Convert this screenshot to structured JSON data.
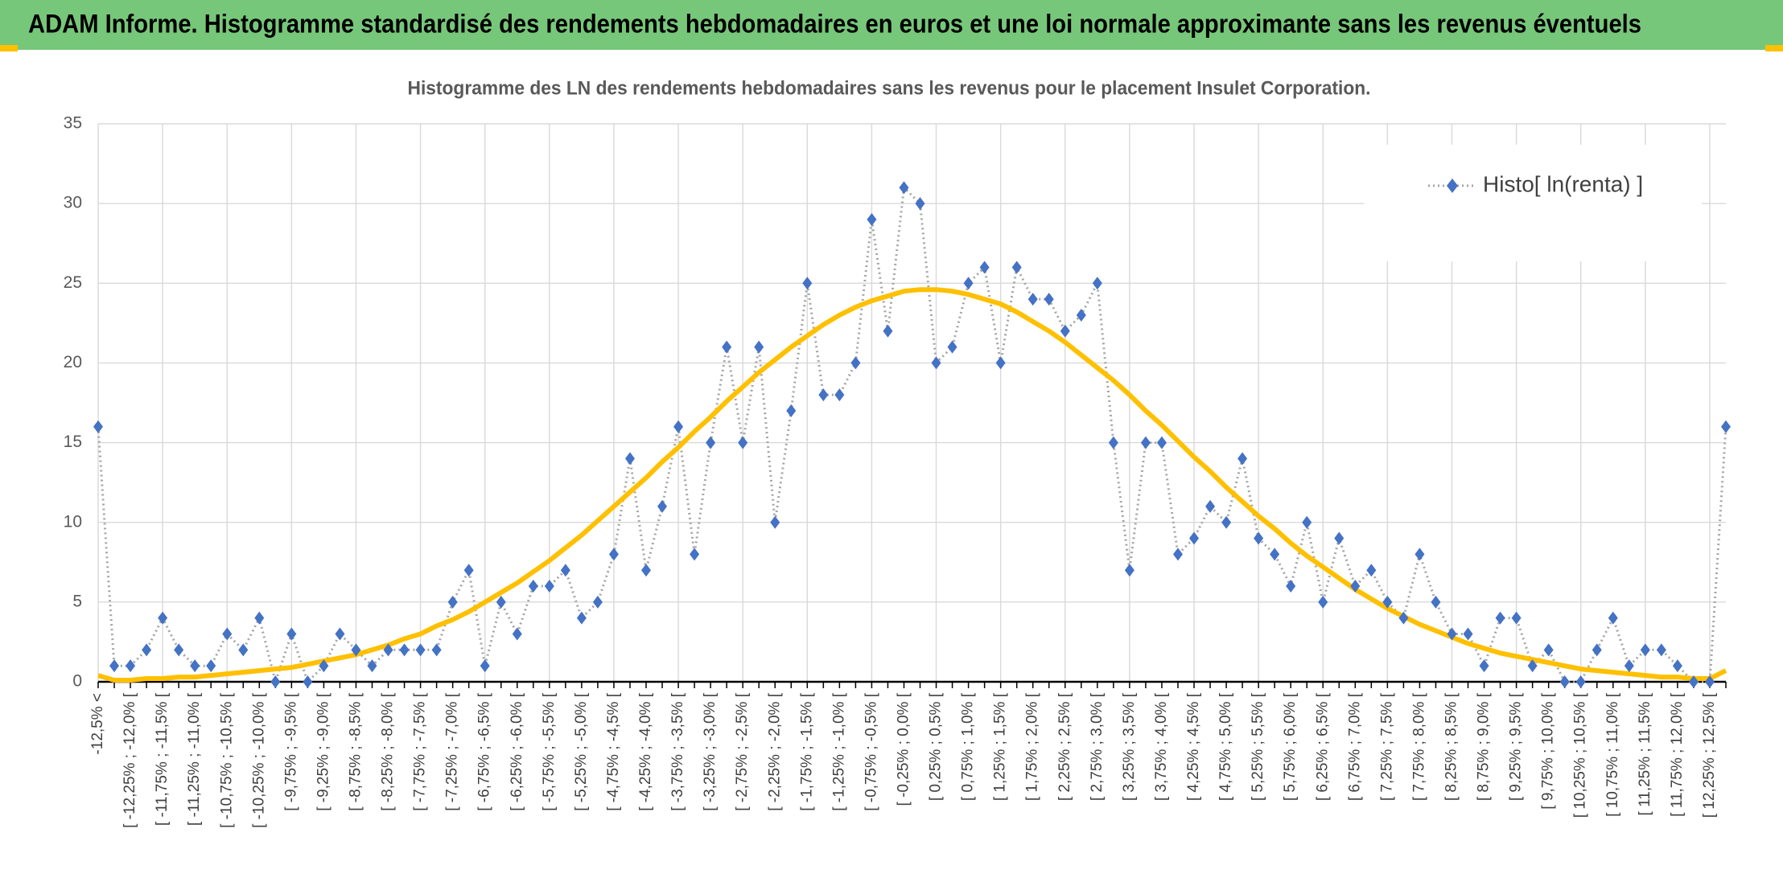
{
  "header": {
    "title": "ADAM Informe. Histogramme standardisé des rendements hebdomadaires en euros et une loi normale approximante sans les revenus éventuels"
  },
  "chart_data": {
    "type": "line",
    "title": "Histogramme des LN des rendements hebdomadaires sans les revenus pour le placement Insulet Corporation.",
    "categories": [
      "-12,5% <",
      null,
      "[ -12,25% ; -12,0% [",
      null,
      "[ -11,75% ; -11,5% [",
      null,
      "[ -11,25% ; -11,0% [",
      null,
      "[ -10,75% ; -10,5% [",
      null,
      "[ -10,25% ; -10,0% [",
      null,
      "[ -9,75% ; -9,5% [",
      null,
      "[ -9,25% ; -9,0% [",
      null,
      "[ -8,75% ; -8,5% [",
      null,
      "[ -8,25% ; -8,0% [",
      null,
      "[ -7,75% ; -7,5% [",
      null,
      "[ -7,25% ; -7,0% [",
      null,
      "[ -6,75% ; -6,5% [",
      null,
      "[ -6,25% ; -6,0% [",
      null,
      "[ -5,75% ; -5,5% [",
      null,
      "[ -5,25% ; -5,0% [",
      null,
      "[ -4,75% ; -4,5% [",
      null,
      "[ -4,25% ; -4,0% [",
      null,
      "[ -3,75% ; -3,5% [",
      null,
      "[ -3,25% ; -3,0% [",
      null,
      "[ -2,75% ; -2,5% [",
      null,
      "[ -2,25% ; -2,0% [",
      null,
      "[ -1,75% ; -1,5% [",
      null,
      "[ -1,25% ; -1,0% [",
      null,
      "[ -0,75% ; -0,5% [",
      null,
      "[ -0,25% ; 0,0% [",
      null,
      "[ 0,25% ; 0,5% [",
      null,
      "[ 0,75% ; 1,0% [",
      null,
      "[ 1,25% ; 1,5% [",
      null,
      "[ 1,75% ; 2,0% [",
      null,
      "[ 2,25% ; 2,5% [",
      null,
      "[ 2,75% ; 3,0% [",
      null,
      "[ 3,25% ; 3,5% [",
      null,
      "[ 3,75% ; 4,0% [",
      null,
      "[ 4,25% ; 4,5% [",
      null,
      "[ 4,75% ; 5,0% [",
      null,
      "[ 5,25% ; 5,5% [",
      null,
      "[ 5,75% ; 6,0% [",
      null,
      "[ 6,25% ; 6,5% [",
      null,
      "[ 6,75% ; 7,0% [",
      null,
      "[ 7,25% ; 7,5% [",
      null,
      "[ 7,75% ; 8,0% [",
      null,
      "[ 8,25% ; 8,5% [",
      null,
      "[ 8,75% ; 9,0% [",
      null,
      "[ 9,25% ; 9,5% [",
      null,
      "[ 9,75% ; 10,0% [",
      null,
      "[ 10,25% ; 10,5% [",
      null,
      "[ 10,75% ; 11,0% [",
      null,
      "[ 11,25% ; 11,5% [",
      null,
      "[ 11,75% ; 12,0% [",
      null,
      "[ 12,25% ; 12,5% [",
      null
    ],
    "series": [
      {
        "name": "Histo[ ln(renta) ]",
        "color": "#4472c4",
        "line_color": "#a5a5a5",
        "values": [
          16,
          1,
          1,
          2,
          4,
          2,
          1,
          1,
          3,
          2,
          4,
          0,
          3,
          0,
          1,
          3,
          2,
          1,
          2,
          2,
          2,
          2,
          5,
          7,
          1,
          5,
          3,
          6,
          6,
          7,
          4,
          5,
          8,
          14,
          7,
          11,
          16,
          8,
          15,
          21,
          15,
          21,
          10,
          17,
          25,
          18,
          18,
          20,
          29,
          22,
          31,
          30,
          20,
          21,
          25,
          26,
          20,
          26,
          24,
          24,
          22,
          23,
          25,
          15,
          7,
          15,
          15,
          8,
          9,
          11,
          10,
          14,
          9,
          8,
          6,
          10,
          5,
          9,
          6,
          7,
          5,
          4,
          8,
          5,
          3,
          3,
          1,
          4,
          4,
          1,
          2,
          0,
          0,
          2,
          4,
          1,
          2,
          2,
          1,
          0,
          0,
          16
        ]
      },
      {
        "color": "#ffc000",
        "values": [
          0.4,
          0.1,
          0.1,
          0.2,
          0.2,
          0.3,
          0.3,
          0.4,
          0.5,
          0.6,
          0.7,
          0.8,
          0.9,
          1.1,
          1.3,
          1.5,
          1.7,
          2.0,
          2.3,
          2.7,
          3.0,
          3.5,
          3.9,
          4.4,
          5.0,
          5.6,
          6.2,
          6.9,
          7.6,
          8.4,
          9.2,
          10.1,
          11.0,
          11.9,
          12.8,
          13.8,
          14.7,
          15.7,
          16.6,
          17.6,
          18.5,
          19.4,
          20.2,
          21.0,
          21.7,
          22.4,
          23.0,
          23.5,
          23.9,
          24.2,
          24.5,
          24.6,
          24.6,
          24.5,
          24.3,
          24.0,
          23.7,
          23.2,
          22.6,
          22.0,
          21.3,
          20.5,
          19.7,
          18.9,
          18.0,
          17.0,
          16.1,
          15.1,
          14.1,
          13.2,
          12.2,
          11.3,
          10.4,
          9.6,
          8.7,
          7.9,
          7.2,
          6.5,
          5.8,
          5.2,
          4.6,
          4.1,
          3.6,
          3.2,
          2.8,
          2.4,
          2.1,
          1.8,
          1.6,
          1.4,
          1.2,
          1.0,
          0.8,
          0.7,
          0.6,
          0.5,
          0.4,
          0.3,
          0.3,
          0.2,
          0.2,
          0.7
        ]
      }
    ],
    "ylim": [
      0,
      35
    ],
    "yticks": [
      0,
      5,
      10,
      15,
      20,
      25,
      30,
      35
    ],
    "grid": true,
    "legend": "top-right"
  }
}
